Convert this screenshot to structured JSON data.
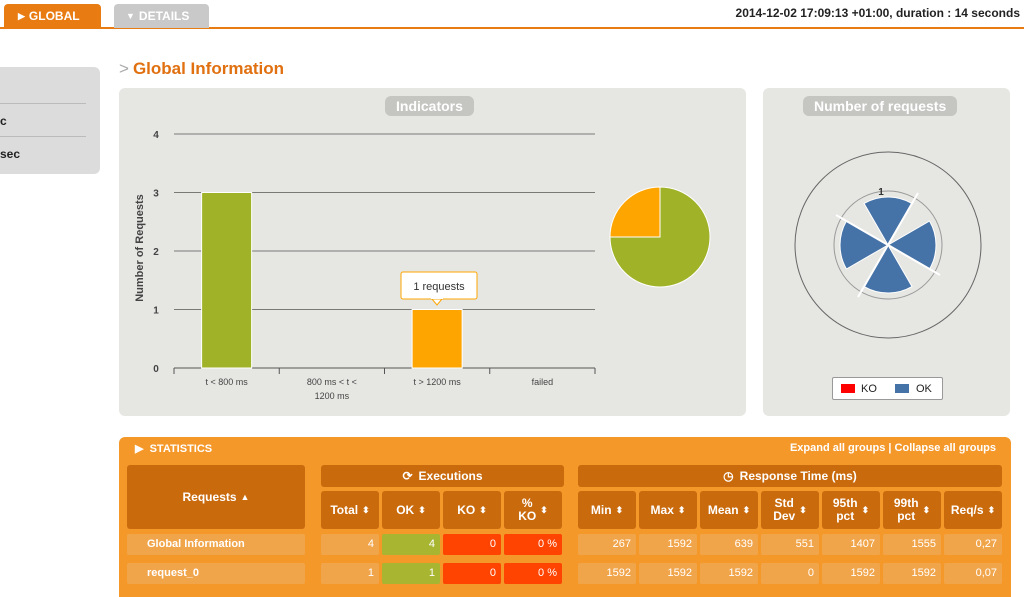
{
  "header": {
    "tab_global": "GLOBAL",
    "tab_details": "DETAILS",
    "run_info": "2014-12-02 17:09:13 +01:00, duration : 14 seconds"
  },
  "sidebar": {
    "items": [
      "c",
      "sec"
    ]
  },
  "page_title": "Global Information",
  "indicators": {
    "title": "Indicators",
    "tooltip": "1 requests",
    "chart_data": {
      "type": "bar",
      "categories": [
        "t < 800 ms",
        "800 ms < t < 1200 ms",
        "t > 1200 ms",
        "failed"
      ],
      "values": [
        3,
        0,
        1,
        0
      ],
      "ylabel": "Number of Requests",
      "ylim": [
        0,
        4
      ],
      "yticks": [
        "0",
        "1",
        "2",
        "3",
        "4"
      ],
      "colors": [
        "#a0b228",
        "#ffd700",
        "#ffa500",
        "#ff0000"
      ]
    },
    "pie_data": {
      "type": "pie",
      "labels": [
        "t < 800 ms",
        "t > 1200 ms"
      ],
      "values": [
        3,
        1
      ],
      "colors": [
        "#a0b228",
        "#ffa500"
      ]
    }
  },
  "requests_panel": {
    "title": "Number of requests",
    "scale_label": "1",
    "legend": [
      {
        "label": "KO",
        "color": "#ff0000"
      },
      {
        "label": "OK",
        "color": "#4572a7"
      }
    ]
  },
  "statistics": {
    "title": "STATISTICS",
    "expand_link": "Expand all groups",
    "separator": "|",
    "collapse_link": "Collapse all groups",
    "requests_header": "Requests",
    "executions_header": "Executions",
    "response_header": "Response Time (ms)",
    "columns": [
      "Total",
      "OK",
      "KO",
      "% KO",
      "Min",
      "Max",
      "Mean",
      "Std Dev",
      "95th pct",
      "99th pct",
      "Req/s"
    ],
    "rows": [
      {
        "name": "Global Information",
        "values": [
          "4",
          "4",
          "0",
          "0 %",
          "267",
          "1592",
          "639",
          "551",
          "1407",
          "1555",
          "0,27"
        ]
      },
      {
        "name": "request_0",
        "values": [
          "1",
          "1",
          "0",
          "0 %",
          "1592",
          "1592",
          "1592",
          "0",
          "1592",
          "1592",
          "0,07"
        ]
      }
    ]
  }
}
